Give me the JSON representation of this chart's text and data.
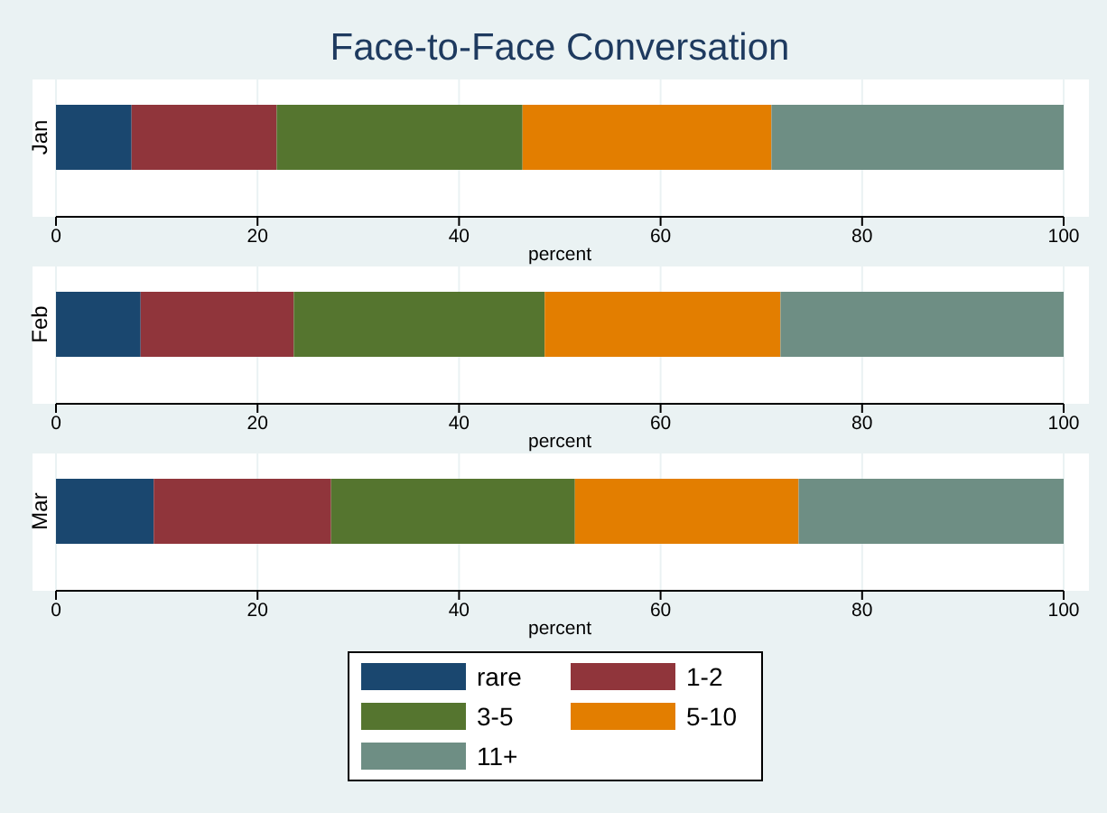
{
  "chart_data": [
    {
      "type": "bar",
      "title": "Face-to-Face Conversation",
      "orientation": "horizontal",
      "stacked": true,
      "categories": [
        "Jan"
      ],
      "xlabel": "percent",
      "xlim": [
        0,
        100
      ],
      "xticks": [
        0,
        20,
        40,
        60,
        80,
        100
      ],
      "grid": "x",
      "series": [
        {
          "color": "#1a476f",
          "values": [
            7.5
          ]
        },
        {
          "color": "#90353b",
          "values": [
            14.4
          ]
        },
        {
          "color": "#55752f",
          "values": [
            24.4
          ]
        },
        {
          "color": "#e37e00",
          "values": [
            24.7
          ]
        },
        {
          "color": "#6e8e84",
          "values": [
            29.0
          ]
        }
      ]
    },
    {
      "type": "bar",
      "orientation": "horizontal",
      "stacked": true,
      "categories": [
        "Feb"
      ],
      "xlabel": "percent",
      "xlim": [
        0,
        100
      ],
      "xticks": [
        0,
        20,
        40,
        60,
        80,
        100
      ],
      "grid": "x",
      "series": [
        {
          "color": "#1a476f",
          "values": [
            8.4
          ]
        },
        {
          "color": "#90353b",
          "values": [
            15.2
          ]
        },
        {
          "color": "#55752f",
          "values": [
            24.9
          ]
        },
        {
          "color": "#e37e00",
          "values": [
            23.4
          ]
        },
        {
          "color": "#6e8e84",
          "values": [
            28.1
          ]
        }
      ]
    },
    {
      "type": "bar",
      "orientation": "horizontal",
      "stacked": true,
      "categories": [
        "Mar"
      ],
      "xlabel": "percent",
      "xlim": [
        0,
        100
      ],
      "xticks": [
        0,
        20,
        40,
        60,
        80,
        100
      ],
      "grid": "x",
      "legend": "bottom",
      "series": [
        {
          "name": "rare",
          "color": "#1a476f",
          "values": [
            9.7
          ]
        },
        {
          "name": "1-2",
          "color": "#90353b",
          "values": [
            17.6
          ]
        },
        {
          "name": "3-5",
          "color": "#55752f",
          "values": [
            24.2
          ]
        },
        {
          "name": "5-10",
          "color": "#e37e00",
          "values": [
            22.2
          ]
        },
        {
          "name": "11+",
          "color": "#6e8e84",
          "values": [
            26.3
          ]
        }
      ]
    }
  ]
}
